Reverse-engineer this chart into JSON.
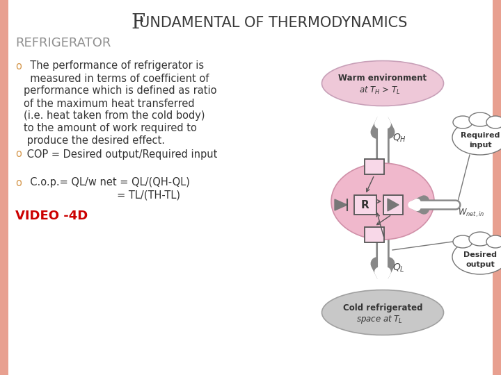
{
  "title_first": "F",
  "title_rest": "UNDAMENTAL OF THERMODYNAMICS",
  "subtitle": "REFRIGERATOR",
  "bullet1_text_lines": [
    "  The performance of refrigerator is",
    "  measured in terms of coefficient of",
    "performance which is defined as ratio",
    "of the maximum heat transferred",
    "(i.e. heat taken from the cold body)",
    "to the amount of work required to",
    " produce the desired effect."
  ],
  "bullet2_text": " COP = Desired output/Required input",
  "bullet3_text_line1": "  C.o.p.= QL/w net = QL/(QH-QL)",
  "bullet3_text_line2": "                             = TL/(TH-TL)",
  "video_text": "VIDEO -4D",
  "bg_color": "#FFFFFF",
  "border_left_color": "#E8A090",
  "border_right_color": "#E8A090",
  "title_color": "#3a3a3a",
  "subtitle_color": "#909090",
  "body_text_color": "#333333",
  "video_color": "#CC0000",
  "bullet_marker_color": "#D4964A",
  "title_fontsize": 17,
  "subtitle_fontsize": 13,
  "body_fontsize": 10.5,
  "video_fontsize": 13,
  "warm_fill": "#EEC8D8",
  "warm_edge": "#C8A0B8",
  "cold_fill": "#C8C8C8",
  "cold_edge": "#A0A0A0",
  "center_oval_fill": "#F0B8CC",
  "center_oval_edge": "#D090A8",
  "arrow_color": "#888888",
  "box_edge": "#555555",
  "bubble_edge": "#777777"
}
